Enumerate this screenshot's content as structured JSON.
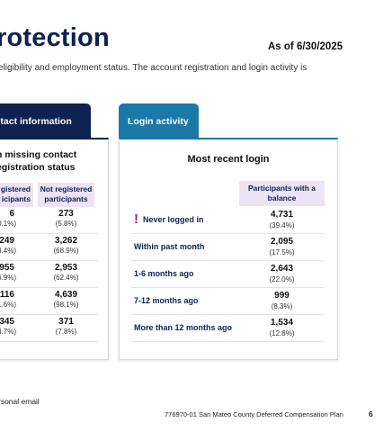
{
  "header": {
    "title": "rotection",
    "as_of": "As of 6/30/2025",
    "subtitle": "eligibility and employment status. The account registration and login activity is"
  },
  "tabs": {
    "contact": "ntact information",
    "login": "Login activity"
  },
  "contact_panel": {
    "heading_line1": "n missing contact",
    "heading_line2": "egistration status",
    "col_registered_line1": "gistered",
    "col_registered_line2": "icipants",
    "col_not_registered_line1": "Not registered",
    "col_not_registered_line2": "participants",
    "rows": [
      {
        "registered": "6",
        "registered_pct": "0.1%)",
        "not_registered": "273",
        "not_registered_pct": "(5.8%)"
      },
      {
        "registered": "249",
        "registered_pct": "3.4%)",
        "not_registered": "3,262",
        "not_registered_pct": "(68.9%)"
      },
      {
        "registered": ",955",
        "registered_pct": "26.9%)",
        "not_registered": "2,953",
        "not_registered_pct": "(62.4%)"
      },
      {
        "registered": "116",
        "registered_pct": "1.6%)",
        "not_registered": "4,639",
        "not_registered_pct": "(98.1%)"
      },
      {
        "registered": "345",
        "registered_pct": "4.7%)",
        "not_registered": "371",
        "not_registered_pct": "(7.8%)"
      }
    ]
  },
  "login_panel": {
    "heading": "Most recent login",
    "col_header_line1": "Participants with a",
    "col_header_line2": "balance",
    "flag_glyph": "!",
    "rows": [
      {
        "label": "Never logged in",
        "value": "4,731",
        "pct": "(39.4%)",
        "flagged": true
      },
      {
        "label": "Within past month",
        "value": "2,095",
        "pct": "(17.5%)",
        "flagged": false
      },
      {
        "label": "1-6 months ago",
        "value": "2,643",
        "pct": "(22.0%)",
        "flagged": false
      },
      {
        "label": "7-12 months ago",
        "value": "999",
        "pct": "(8.3%)",
        "flagged": false
      },
      {
        "label": "More than 12 months ago",
        "value": "1,534",
        "pct": "(12.8%)",
        "flagged": false
      }
    ]
  },
  "footer": {
    "note": "rsonal email",
    "plan": "776970-01 San Mateo County Deferred Compensation Plan",
    "page": "6"
  },
  "colors": {
    "navy": "#0e2150",
    "teal": "#1b79a6",
    "lavender": "#ece3f4",
    "flag": "#8a2a7e"
  }
}
